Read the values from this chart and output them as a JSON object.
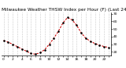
{
  "hours": [
    0,
    1,
    2,
    3,
    4,
    5,
    6,
    7,
    8,
    9,
    10,
    11,
    12,
    13,
    14,
    15,
    16,
    17,
    18,
    19,
    20,
    21,
    22,
    23
  ],
  "values": [
    35,
    33,
    30,
    27,
    24,
    21,
    18,
    17,
    19,
    23,
    30,
    38,
    47,
    58,
    65,
    62,
    55,
    45,
    38,
    34,
    31,
    29,
    27,
    26
  ],
  "line_color": "#cc0000",
  "marker_color": "#000000",
  "bg_color": "#ffffff",
  "grid_color": "#999999",
  "title": "Milwaukee Weather THSW Index per Hour (F) (Last 24 Hours)",
  "ylim": [
    15,
    72
  ],
  "yticks": [
    20,
    30,
    40,
    50,
    60,
    70
  ],
  "title_fontsize": 4.2,
  "tick_fontsize": 3.2,
  "linewidth": 0.75,
  "markersize": 1.4
}
